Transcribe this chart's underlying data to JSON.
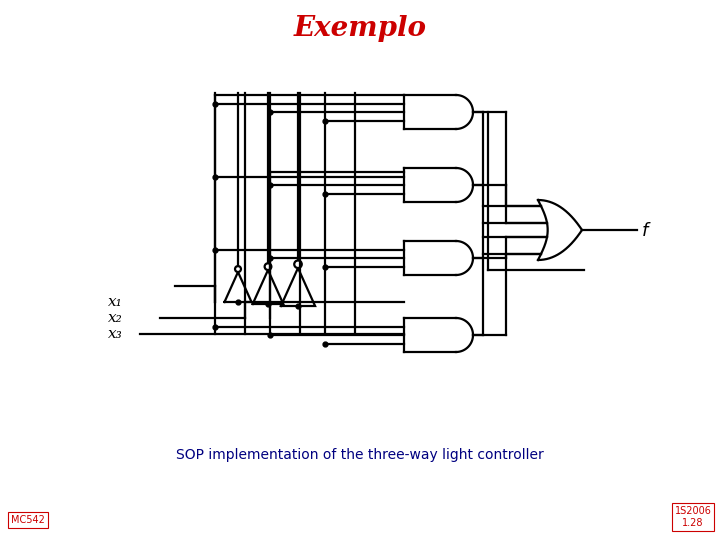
{
  "title": "Exemplo",
  "title_color": "#CC0000",
  "title_fontsize": 20,
  "subtitle": "SOP implementation of the three-way light controller",
  "subtitle_color": "#000080",
  "subtitle_fontsize": 10,
  "bottom_left": "MC542",
  "bottom_right": "1S2006\n1.28",
  "label_color": "#CC0000",
  "f_label": "f",
  "bg_color": "#ffffff",
  "lc": "#000000",
  "lw": 1.6,
  "input_labels": [
    "x₁",
    "x₂",
    "x₃"
  ]
}
